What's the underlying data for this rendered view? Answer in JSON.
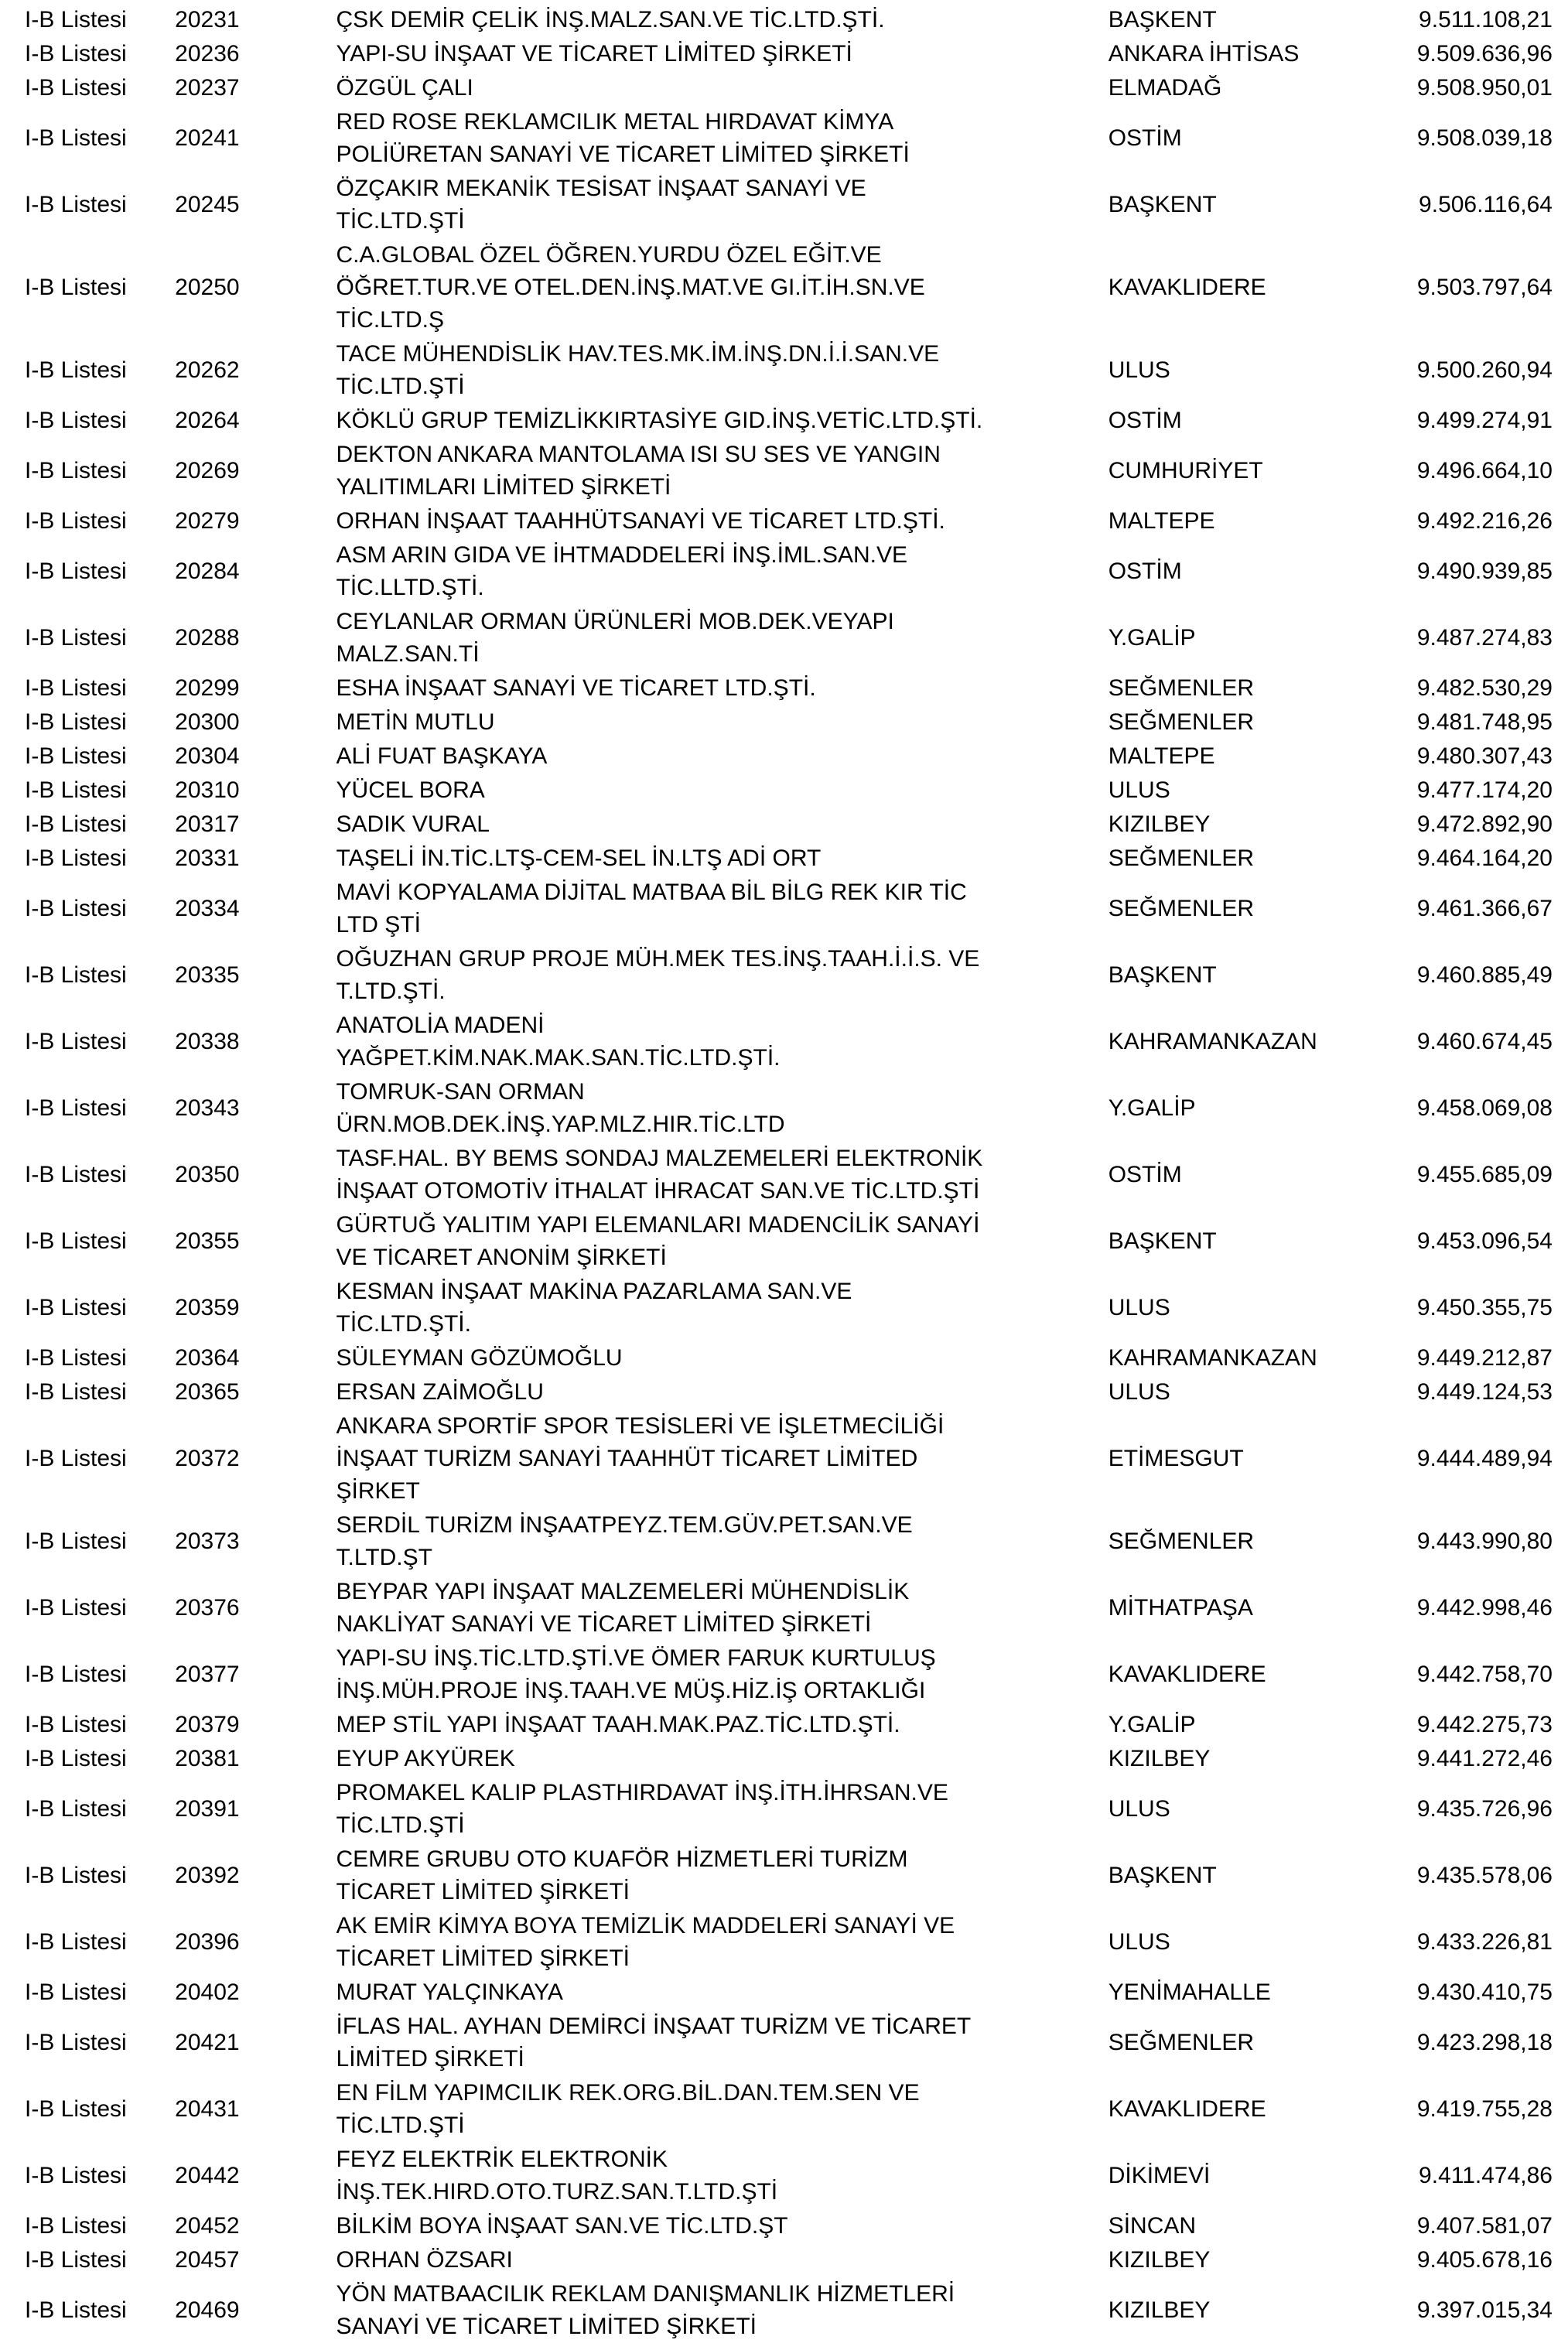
{
  "document": {
    "list_label": "I-B Listesi"
  },
  "table": {
    "rows": [
      {
        "list": "I-B Listesi",
        "no": "20231",
        "name": "ÇSK DEMİR ÇELİK İNŞ.MALZ.SAN.VE TİC.LTD.ŞTİ.",
        "office": "BAŞKENT",
        "amount": "9.511.108,21"
      },
      {
        "list": "I-B Listesi",
        "no": "20236",
        "name": "YAPI-SU İNŞAAT VE TİCARET LİMİTED ŞİRKETİ",
        "office": "ANKARA İHTİSAS",
        "amount": "9.509.636,96"
      },
      {
        "list": "I-B Listesi",
        "no": "20237",
        "name": "ÖZGÜL ÇALI",
        "office": "ELMADAĞ",
        "amount": "9.508.950,01"
      },
      {
        "list": "I-B Listesi",
        "no": "20241",
        "name": "RED ROSE REKLAMCILIK METAL HIRDAVAT KİMYA\nPOLİÜRETAN SANAYİ VE TİCARET LİMİTED ŞİRKETİ",
        "office": "OSTİM",
        "amount": "9.508.039,18"
      },
      {
        "list": "I-B Listesi",
        "no": "20245",
        "name": "ÖZÇAKIR MEKANİK TESİSAT İNŞAAT SANAYİ VE\nTİC.LTD.ŞTİ",
        "office": "BAŞKENT",
        "amount": "9.506.116,64"
      },
      {
        "list": "I-B Listesi",
        "no": "20250",
        "name": "C.A.GLOBAL ÖZEL ÖĞREN.YURDU ÖZEL EĞİT.VE\nÖĞRET.TUR.VE OTEL.DEN.İNŞ.MAT.VE GI.İT.İH.SN.VE\nTİC.LTD.Ş",
        "office": "KAVAKLIDERE",
        "amount": "9.503.797,64"
      },
      {
        "list": "I-B Listesi",
        "no": "20262",
        "name": "TACE MÜHENDİSLİK HAV.TES.MK.İM.İNŞ.DN.İ.İ.SAN.VE\nTİC.LTD.ŞTİ",
        "office": "ULUS",
        "amount": "9.500.260,94"
      },
      {
        "list": "I-B Listesi",
        "no": "20264",
        "name": "KÖKLÜ GRUP TEMİZLİKKIRTASİYE GID.İNŞ.VETİC.LTD.ŞTİ.",
        "office": "OSTİM",
        "amount": "9.499.274,91"
      },
      {
        "list": "I-B Listesi",
        "no": "20269",
        "name": "DEKTON ANKARA MANTOLAMA ISI SU SES VE YANGIN\nYALITIMLARI LİMİTED ŞİRKETİ",
        "office": "CUMHURİYET",
        "amount": "9.496.664,10"
      },
      {
        "list": "I-B Listesi",
        "no": "20279",
        "name": "ORHAN İNŞAAT TAAHHÜTSANAYİ VE TİCARET LTD.ŞTİ.",
        "office": "MALTEPE",
        "amount": "9.492.216,26"
      },
      {
        "list": "I-B Listesi",
        "no": "20284",
        "name": "ASM ARIN GIDA VE İHTMADDELERİ İNŞ.İML.SAN.VE\nTİC.LLTD.ŞTİ.",
        "office": "OSTİM",
        "amount": "9.490.939,85"
      },
      {
        "list": "I-B Listesi",
        "no": "20288",
        "name": "CEYLANLAR ORMAN ÜRÜNLERİ MOB.DEK.VEYAPI\nMALZ.SAN.Tİ",
        "office": "Y.GALİP",
        "amount": "9.487.274,83"
      },
      {
        "list": "I-B Listesi",
        "no": "20299",
        "name": "ESHA İNŞAAT SANAYİ VE TİCARET LTD.ŞTİ.",
        "office": "SEĞMENLER",
        "amount": "9.482.530,29"
      },
      {
        "list": "I-B Listesi",
        "no": "20300",
        "name": "METİN MUTLU",
        "office": "SEĞMENLER",
        "amount": "9.481.748,95"
      },
      {
        "list": "I-B Listesi",
        "no": "20304",
        "name": "ALİ FUAT BAŞKAYA",
        "office": "MALTEPE",
        "amount": "9.480.307,43"
      },
      {
        "list": "I-B Listesi",
        "no": "20310",
        "name": "YÜCEL BORA",
        "office": "ULUS",
        "amount": "9.477.174,20"
      },
      {
        "list": "I-B Listesi",
        "no": "20317",
        "name": "SADIK VURAL",
        "office": "KIZILBEY",
        "amount": "9.472.892,90"
      },
      {
        "list": "I-B Listesi",
        "no": "20331",
        "name": "TAŞELİ İN.TİC.LTŞ-CEM-SEL İN.LTŞ ADİ ORT",
        "office": "SEĞMENLER",
        "amount": "9.464.164,20"
      },
      {
        "list": "I-B Listesi",
        "no": "20334",
        "name": "MAVİ KOPYALAMA DİJİTAL MATBAA BİL BİLG REK KIR TİC\nLTD ŞTİ",
        "office": "SEĞMENLER",
        "amount": "9.461.366,67"
      },
      {
        "list": "I-B Listesi",
        "no": "20335",
        "name": "OĞUZHAN GRUP PROJE MÜH.MEK TES.İNŞ.TAAH.İ.İ.S. VE\nT.LTD.ŞTİ.",
        "office": "BAŞKENT",
        "amount": "9.460.885,49"
      },
      {
        "list": "I-B Listesi",
        "no": "20338",
        "name": "ANATOLİA MADENİ\nYAĞPET.KİM.NAK.MAK.SAN.TİC.LTD.ŞTİ.",
        "office": "KAHRAMANKAZAN",
        "amount": "9.460.674,45"
      },
      {
        "list": "I-B Listesi",
        "no": "20343",
        "name": "TOMRUK-SAN ORMAN\nÜRN.MOB.DEK.İNŞ.YAP.MLZ.HIR.TİC.LTD",
        "office": "Y.GALİP",
        "amount": "9.458.069,08"
      },
      {
        "list": "I-B Listesi",
        "no": "20350",
        "name": "TASF.HAL. BY BEMS SONDAJ MALZEMELERİ ELEKTRONİK\nİNŞAAT OTOMOTİV İTHALAT İHRACAT SAN.VE TİC.LTD.ŞTİ",
        "office": "OSTİM",
        "amount": "9.455.685,09"
      },
      {
        "list": "I-B Listesi",
        "no": "20355",
        "name": "GÜRTUĞ YALITIM YAPI ELEMANLARI MADENCİLİK SANAYİ\nVE TİCARET ANONİM ŞİRKETİ",
        "office": "BAŞKENT",
        "amount": "9.453.096,54"
      },
      {
        "list": "I-B Listesi",
        "no": "20359",
        "name": "KESMAN İNŞAAT MAKİNA PAZARLAMA SAN.VE\nTİC.LTD.ŞTİ.",
        "office": "ULUS",
        "amount": "9.450.355,75"
      },
      {
        "list": "I-B Listesi",
        "no": "20364",
        "name": "SÜLEYMAN GÖZÜMOĞLU",
        "office": "KAHRAMANKAZAN",
        "amount": "9.449.212,87"
      },
      {
        "list": "I-B Listesi",
        "no": "20365",
        "name": "ERSAN ZAİMOĞLU",
        "office": "ULUS",
        "amount": "9.449.124,53"
      },
      {
        "list": "I-B Listesi",
        "no": "20372",
        "name": "ANKARA SPORTİF SPOR TESİSLERİ VE İŞLETMECİLİĞİ\nİNŞAAT TURİZM SANAYİ TAAHHÜT TİCARET LİMİTED\nŞİRKET",
        "office": "ETİMESGUT",
        "amount": "9.444.489,94"
      },
      {
        "list": "I-B Listesi",
        "no": "20373",
        "name": "SERDİL TURİZM İNŞAATPEYZ.TEM.GÜV.PET.SAN.VE\nT.LTD.ŞT",
        "office": "SEĞMENLER",
        "amount": "9.443.990,80"
      },
      {
        "list": "I-B Listesi",
        "no": "20376",
        "name": "BEYPAR YAPI İNŞAAT MALZEMELERİ MÜHENDİSLİK\nNAKLİYAT SANAYİ VE TİCARET LİMİTED ŞİRKETİ",
        "office": "MİTHATPAŞA",
        "amount": "9.442.998,46"
      },
      {
        "list": "I-B Listesi",
        "no": "20377",
        "name": "YAPI-SU İNŞ.TİC.LTD.ŞTİ.VE ÖMER FARUK KURTULUŞ\nİNŞ.MÜH.PROJE İNŞ.TAAH.VE MÜŞ.HİZ.İŞ ORTAKLIĞI",
        "office": "KAVAKLIDERE",
        "amount": "9.442.758,70"
      },
      {
        "list": "I-B Listesi",
        "no": "20379",
        "name": "MEP STİL YAPI İNŞAAT TAAH.MAK.PAZ.TİC.LTD.ŞTİ.",
        "office": "Y.GALİP",
        "amount": "9.442.275,73"
      },
      {
        "list": "I-B Listesi",
        "no": "20381",
        "name": "EYUP AKYÜREK",
        "office": "KIZILBEY",
        "amount": "9.441.272,46"
      },
      {
        "list": "I-B Listesi",
        "no": "20391",
        "name": "PROMAKEL KALIP PLASTHIRDAVAT İNŞ.İTH.İHRSAN.VE\nTİC.LTD.ŞTİ",
        "office": "ULUS",
        "amount": "9.435.726,96"
      },
      {
        "list": "I-B Listesi",
        "no": "20392",
        "name": "CEMRE GRUBU OTO KUAFÖR HİZMETLERİ TURİZM\nTİCARET LİMİTED ŞİRKETİ",
        "office": "BAŞKENT",
        "amount": "9.435.578,06"
      },
      {
        "list": "I-B Listesi",
        "no": "20396",
        "name": "AK EMİR KİMYA BOYA TEMİZLİK MADDELERİ SANAYİ VE\nTİCARET LİMİTED ŞİRKETİ",
        "office": "ULUS",
        "amount": "9.433.226,81"
      },
      {
        "list": "I-B Listesi",
        "no": "20402",
        "name": "MURAT YALÇINKAYA",
        "office": "YENİMAHALLE",
        "amount": "9.430.410,75"
      },
      {
        "list": "I-B Listesi",
        "no": "20421",
        "name": "İFLAS HAL. AYHAN DEMİRCİ İNŞAAT TURİZM VE TİCARET\nLİMİTED ŞİRKETİ",
        "office": "SEĞMENLER",
        "amount": "9.423.298,18"
      },
      {
        "list": "I-B Listesi",
        "no": "20431",
        "name": "EN FİLM YAPIMCILIK REK.ORG.BİL.DAN.TEM.SEN VE\nTİC.LTD.ŞTİ",
        "office": "KAVAKLIDERE",
        "amount": "9.419.755,28"
      },
      {
        "list": "I-B Listesi",
        "no": "20442",
        "name": "FEYZ ELEKTRİK ELEKTRONİK\nİNŞ.TEK.HIRD.OTO.TURZ.SAN.T.LTD.ŞTİ",
        "office": "DİKİMEVİ",
        "amount": "9.411.474,86"
      },
      {
        "list": "I-B Listesi",
        "no": "20452",
        "name": "BİLKİM BOYA İNŞAAT SAN.VE TİC.LTD.ŞT",
        "office": "SİNCAN",
        "amount": "9.407.581,07"
      },
      {
        "list": "I-B Listesi",
        "no": "20457",
        "name": "ORHAN ÖZSARI",
        "office": "KIZILBEY",
        "amount": "9.405.678,16"
      },
      {
        "list": "I-B Listesi",
        "no": "20469",
        "name": "YÖN MATBAACILIK REKLAM DANIŞMANLIK HİZMETLERİ\nSANAYİ VE TİCARET LİMİTED ŞİRKETİ",
        "office": "KIZILBEY",
        "amount": "9.397.015,34"
      }
    ]
  }
}
